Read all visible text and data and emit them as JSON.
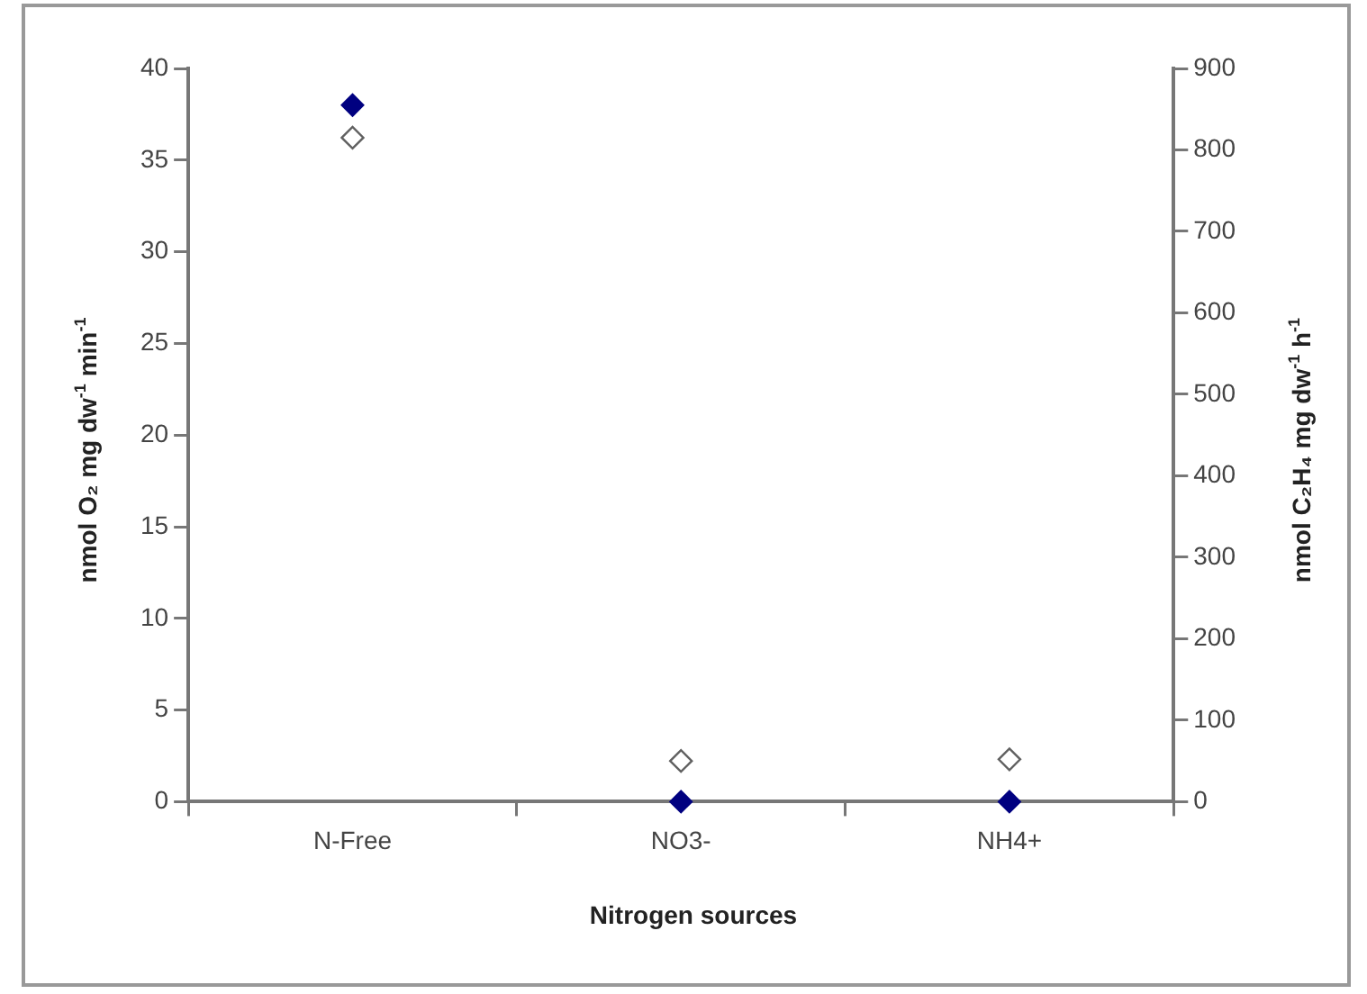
{
  "chart_data": {
    "type": "scatter",
    "xlabel": "Nitrogen sources",
    "ylabel": "nmol O₂ mg dw$^{-1}$ min$^{-1}$",
    "y2label": "nmol C₂H₄ mg dw$^{-1}$ h$^{-1}$",
    "categories": [
      "N-Free",
      "NO3-",
      "NH4+"
    ],
    "series": [
      {
        "color": "#000080",
        "values": [
          38,
          0,
          0
        ]
      },
      {
        "color": "#606060",
        "axis": "y2",
        "values": [
          815,
          50,
          52
        ]
      }
    ],
    "ylim": [
      0,
      40
    ],
    "yticks": [
      0,
      5,
      10,
      15,
      20,
      25,
      30,
      35,
      40
    ],
    "y2lim": [
      0,
      900
    ],
    "y2ticks": [
      0,
      100,
      200,
      300,
      400,
      500,
      600,
      700,
      800,
      900
    ],
    "marker": "diamond",
    "grid": false,
    "legend": false
  }
}
